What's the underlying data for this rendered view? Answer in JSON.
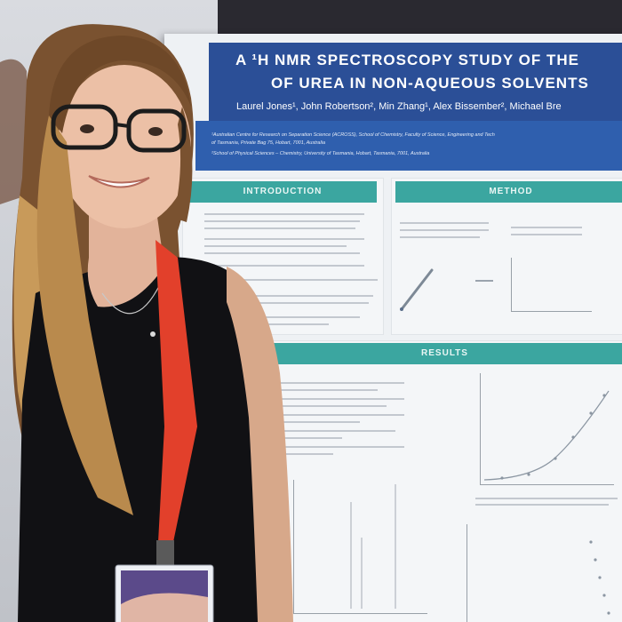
{
  "poster": {
    "title_line1": "A ¹H NMR SPECTROSCOPY STUDY OF THE",
    "title_line2": "OF UREA IN NON-AQUEOUS SOLVENTS",
    "authors": "Laurel Jones¹, John Robertson², Min Zhang¹, Alex Bissember², Michael Bre",
    "affiliation1": "¹Australian Centre for Research on Separation Science (ACROSS), School of Chemistry, Faculty of Science, Engineering and Tech",
    "affiliation1b": "of Tasmania, Private Bag 75, Hobart, 7001, Australia",
    "affiliation2": "²School of Physical Sciences – Chemistry, University of Tasmania, Hobart, Tasmania, 7001, Australia",
    "sections": {
      "introduction": "INTRODUCTION",
      "method": "METHOD",
      "results": "RESULTS"
    }
  },
  "colors": {
    "title_band": "#2b4f97",
    "section_header": "#3ba6a0",
    "lanyard": "#e2402b"
  }
}
